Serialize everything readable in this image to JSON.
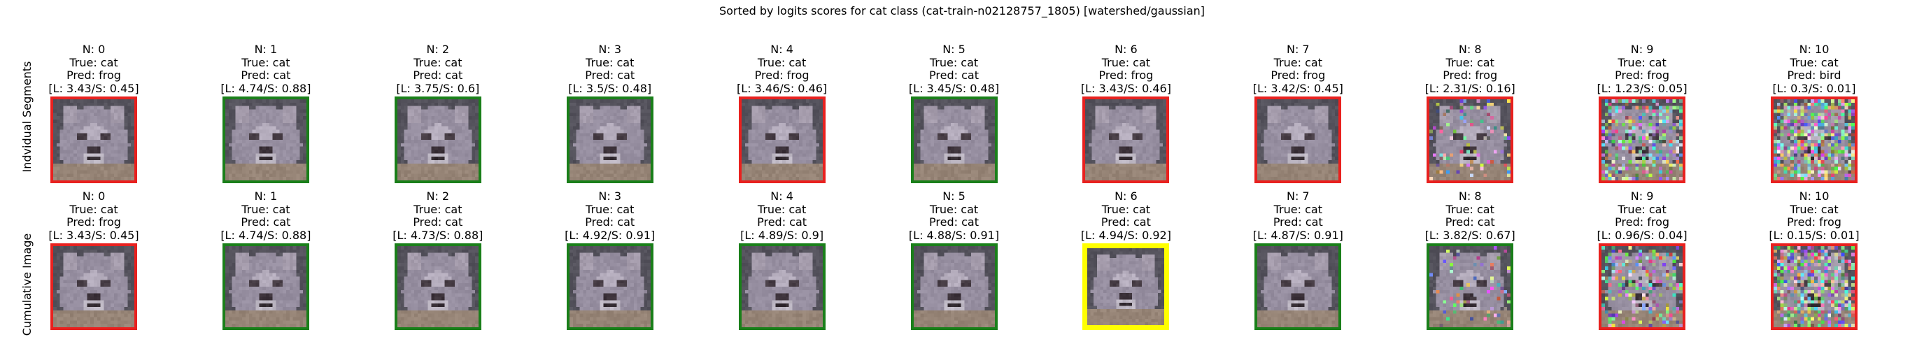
{
  "title": "Sorted by logits scores for cat class (cat-train-n02128757_1805) [watershed/gaussian]",
  "colors": {
    "correct": "#1a7f1a",
    "wrong": "#e8211f",
    "best": "#ffff00"
  },
  "rows": [
    {
      "label": "Indvidual Segments",
      "panels": [
        {
          "n": "N: 0",
          "true": "True: cat",
          "pred": "Pred: frog",
          "score": "[L: 3.43/S: 0.45]",
          "status": "wrong",
          "noise": 0.0
        },
        {
          "n": "N: 1",
          "true": "True: cat",
          "pred": "Pred: cat",
          "score": "[L: 4.74/S: 0.88]",
          "status": "correct",
          "noise": 0.0
        },
        {
          "n": "N: 2",
          "true": "True: cat",
          "pred": "Pred: cat",
          "score": "[L: 3.75/S: 0.6]",
          "status": "correct",
          "noise": 0.0
        },
        {
          "n": "N: 3",
          "true": "True: cat",
          "pred": "Pred: cat",
          "score": "[L: 3.5/S: 0.48]",
          "status": "correct",
          "noise": 0.0
        },
        {
          "n": "N: 4",
          "true": "True: cat",
          "pred": "Pred: frog",
          "score": "[L: 3.46/S: 0.46]",
          "status": "wrong",
          "noise": 0.0
        },
        {
          "n": "N: 5",
          "true": "True: cat",
          "pred": "Pred: cat",
          "score": "[L: 3.45/S: 0.48]",
          "status": "correct",
          "noise": 0.0
        },
        {
          "n": "N: 6",
          "true": "True: cat",
          "pred": "Pred: frog",
          "score": "[L: 3.43/S: 0.46]",
          "status": "wrong",
          "noise": 0.0
        },
        {
          "n": "N: 7",
          "true": "True: cat",
          "pred": "Pred: frog",
          "score": "[L: 3.42/S: 0.45]",
          "status": "wrong",
          "noise": 0.0
        },
        {
          "n": "N: 8",
          "true": "True: cat",
          "pred": "Pred: frog",
          "score": "[L: 2.31/S: 0.16]",
          "status": "wrong",
          "noise": 0.12
        },
        {
          "n": "N: 9",
          "true": "True: cat",
          "pred": "Pred: frog",
          "score": "[L: 1.23/S: 0.05]",
          "status": "wrong",
          "noise": 0.45
        },
        {
          "n": "N: 10",
          "true": "True: cat",
          "pred": "Pred: bird",
          "score": "[L: 0.3/S: 0.01]",
          "status": "wrong",
          "noise": 0.6
        }
      ]
    },
    {
      "label": "Cumulative Image",
      "panels": [
        {
          "n": "N: 0",
          "true": "True: cat",
          "pred": "Pred: frog",
          "score": "[L: 3.43/S: 0.45]",
          "status": "wrong",
          "noise": 0.0
        },
        {
          "n": "N: 1",
          "true": "True: cat",
          "pred": "Pred: cat",
          "score": "[L: 4.74/S: 0.88]",
          "status": "correct",
          "noise": 0.0
        },
        {
          "n": "N: 2",
          "true": "True: cat",
          "pred": "Pred: cat",
          "score": "[L: 4.73/S: 0.88]",
          "status": "correct",
          "noise": 0.0
        },
        {
          "n": "N: 3",
          "true": "True: cat",
          "pred": "Pred: cat",
          "score": "[L: 4.92/S: 0.91]",
          "status": "correct",
          "noise": 0.0
        },
        {
          "n": "N: 4",
          "true": "True: cat",
          "pred": "Pred: cat",
          "score": "[L: 4.89/S: 0.9]",
          "status": "correct",
          "noise": 0.0
        },
        {
          "n": "N: 5",
          "true": "True: cat",
          "pred": "Pred: cat",
          "score": "[L: 4.88/S: 0.91]",
          "status": "correct",
          "noise": 0.0
        },
        {
          "n": "N: 6",
          "true": "True: cat",
          "pred": "Pred: cat",
          "score": "[L: 4.94/S: 0.92]",
          "status": "best",
          "noise": 0.0
        },
        {
          "n": "N: 7",
          "true": "True: cat",
          "pred": "Pred: cat",
          "score": "[L: 4.87/S: 0.91]",
          "status": "correct",
          "noise": 0.0
        },
        {
          "n": "N: 8",
          "true": "True: cat",
          "pred": "Pred: cat",
          "score": "[L: 3.82/S: 0.67]",
          "status": "correct",
          "noise": 0.08
        },
        {
          "n": "N: 9",
          "true": "True: cat",
          "pred": "Pred: frog",
          "score": "[L: 0.96/S: 0.04]",
          "status": "wrong",
          "noise": 0.35
        },
        {
          "n": "N: 10",
          "true": "True: cat",
          "pred": "Pred: frog",
          "score": "[L: 0.15/S: 0.01]",
          "status": "wrong",
          "noise": 0.6
        }
      ]
    }
  ],
  "chart_data": {
    "type": "image-grid",
    "title": "Sorted by logits scores for cat class (cat-train-n02128757_1805) [watershed/gaussian]",
    "true_class": "cat",
    "rows": [
      "Indvidual Segments",
      "Cumulative Image"
    ],
    "n": [
      0,
      1,
      2,
      3,
      4,
      5,
      6,
      7,
      8,
      9,
      10
    ],
    "series": [
      {
        "name": "Indvidual Segments",
        "pred": [
          "frog",
          "cat",
          "cat",
          "cat",
          "frog",
          "cat",
          "frog",
          "frog",
          "frog",
          "frog",
          "bird"
        ],
        "logit": [
          3.43,
          4.74,
          3.75,
          3.5,
          3.46,
          3.45,
          3.43,
          3.42,
          2.31,
          1.23,
          0.3
        ],
        "softmax": [
          0.45,
          0.88,
          0.6,
          0.48,
          0.46,
          0.48,
          0.46,
          0.45,
          0.16,
          0.05,
          0.01
        ]
      },
      {
        "name": "Cumulative Image",
        "pred": [
          "frog",
          "cat",
          "cat",
          "cat",
          "cat",
          "cat",
          "cat",
          "cat",
          "cat",
          "frog",
          "frog"
        ],
        "logit": [
          3.43,
          4.74,
          4.73,
          4.92,
          4.89,
          4.88,
          4.94,
          4.87,
          3.82,
          0.96,
          0.15
        ],
        "softmax": [
          0.45,
          0.88,
          0.88,
          0.91,
          0.9,
          0.91,
          0.92,
          0.91,
          0.67,
          0.04,
          0.01
        ]
      }
    ]
  }
}
